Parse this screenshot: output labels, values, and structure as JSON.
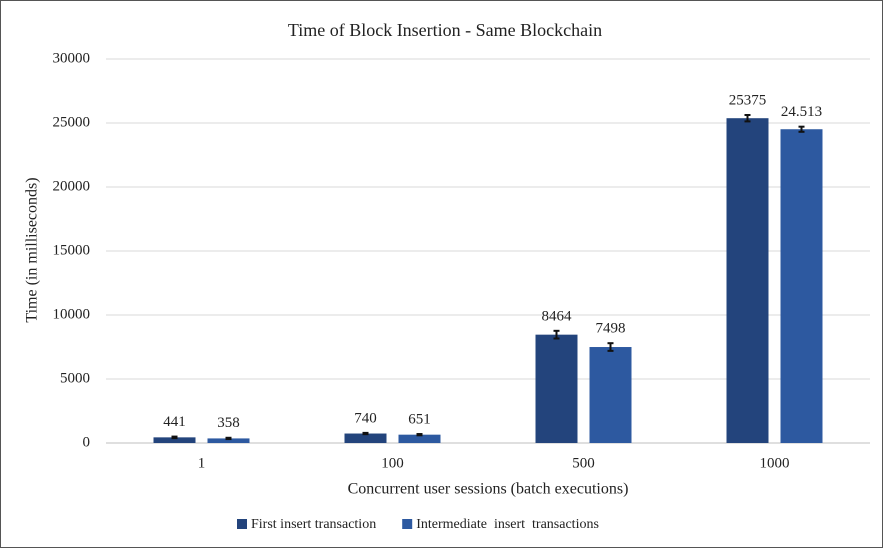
{
  "chart_data": {
    "type": "bar",
    "title": "Time of Block Insertion - Same Blockchain",
    "x_label": "Concurrent user sessions (batch executions)",
    "y_label": "Time (in milliseconds)",
    "categories": [
      "1",
      "100",
      "500",
      "1000"
    ],
    "series": [
      {
        "name": "First insert transaction",
        "color": "#23447c",
        "values": [
          441,
          740,
          8464,
          25375
        ],
        "errors": [
          60,
          50,
          300,
          250
        ]
      },
      {
        "name": "Intermediate  insert  transactions",
        "color": "#2d59a0",
        "values": [
          358,
          651,
          7498,
          24513
        ],
        "errors": [
          50,
          50,
          300,
          200
        ],
        "value_labels": [
          "358",
          "651",
          "7498",
          "24.513"
        ]
      }
    ],
    "ylim": [
      0,
      30000
    ],
    "yticks": [
      0,
      5000,
      10000,
      15000,
      20000,
      25000,
      30000
    ],
    "grid": true,
    "legend": "bottom"
  }
}
